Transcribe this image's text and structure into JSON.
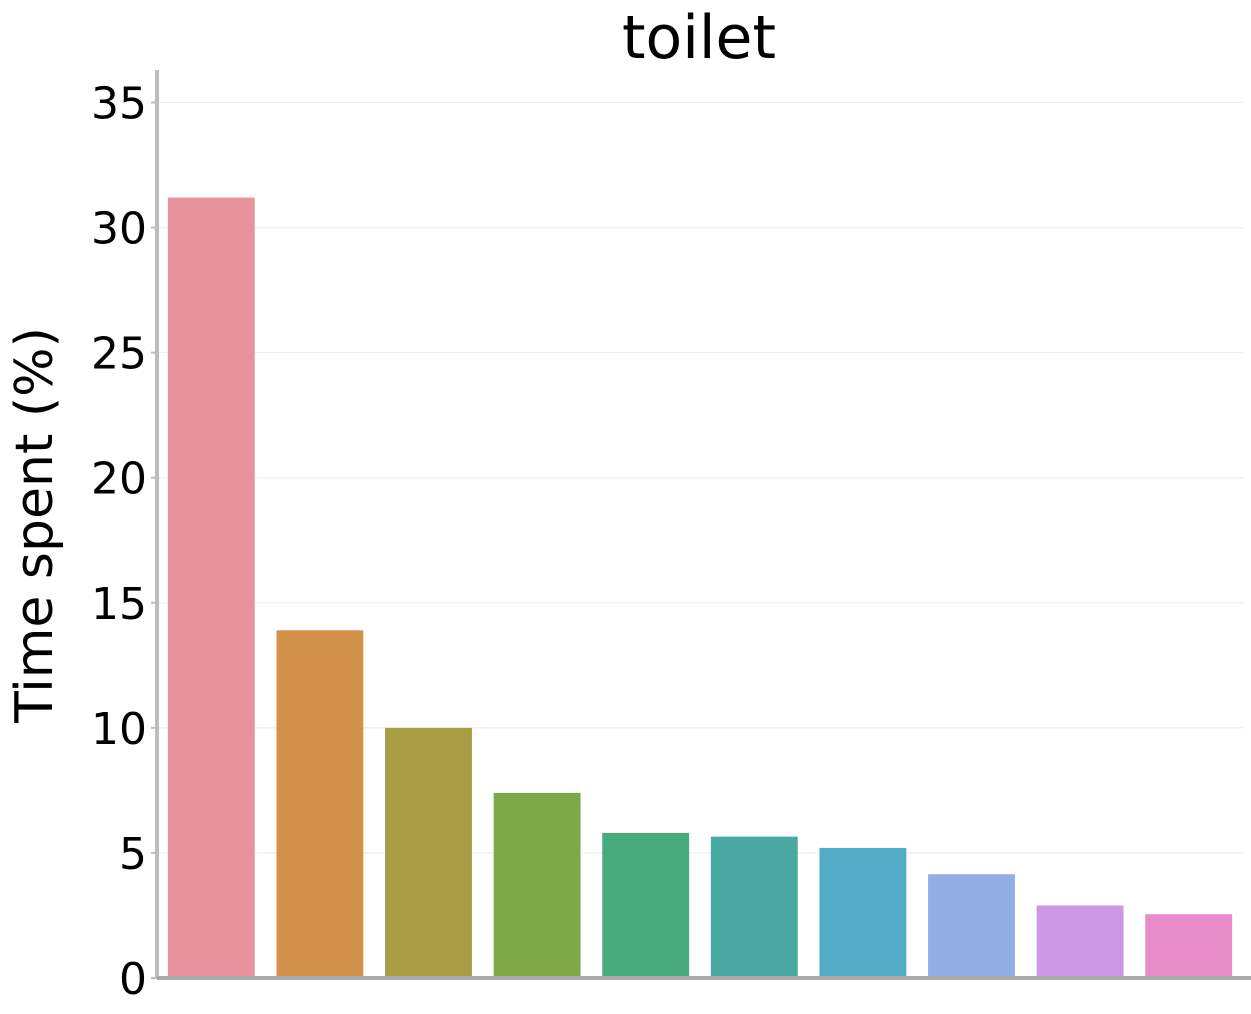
{
  "chart_data": {
    "type": "bar",
    "title": "toilet",
    "xlabel": "",
    "ylabel": "Time spent (%)",
    "ylim": [
      0,
      36.3
    ],
    "yticks": [
      "0",
      "5",
      "10",
      "15",
      "20",
      "25",
      "30",
      "35"
    ],
    "grid": "horizontal",
    "legend": "none",
    "series": [
      {
        "values": [
          31.2,
          13.9,
          10.0,
          7.4,
          5.8,
          5.65,
          5.2,
          4.15,
          2.9,
          2.55
        ],
        "colors": [
          "#e8929e",
          "#d4914c",
          "#a89c45",
          "#7ea846",
          "#47ab7d",
          "#49a8a2",
          "#51abc4",
          "#93aee5",
          "#cc98e5",
          "#e88bc9"
        ]
      }
    ]
  }
}
